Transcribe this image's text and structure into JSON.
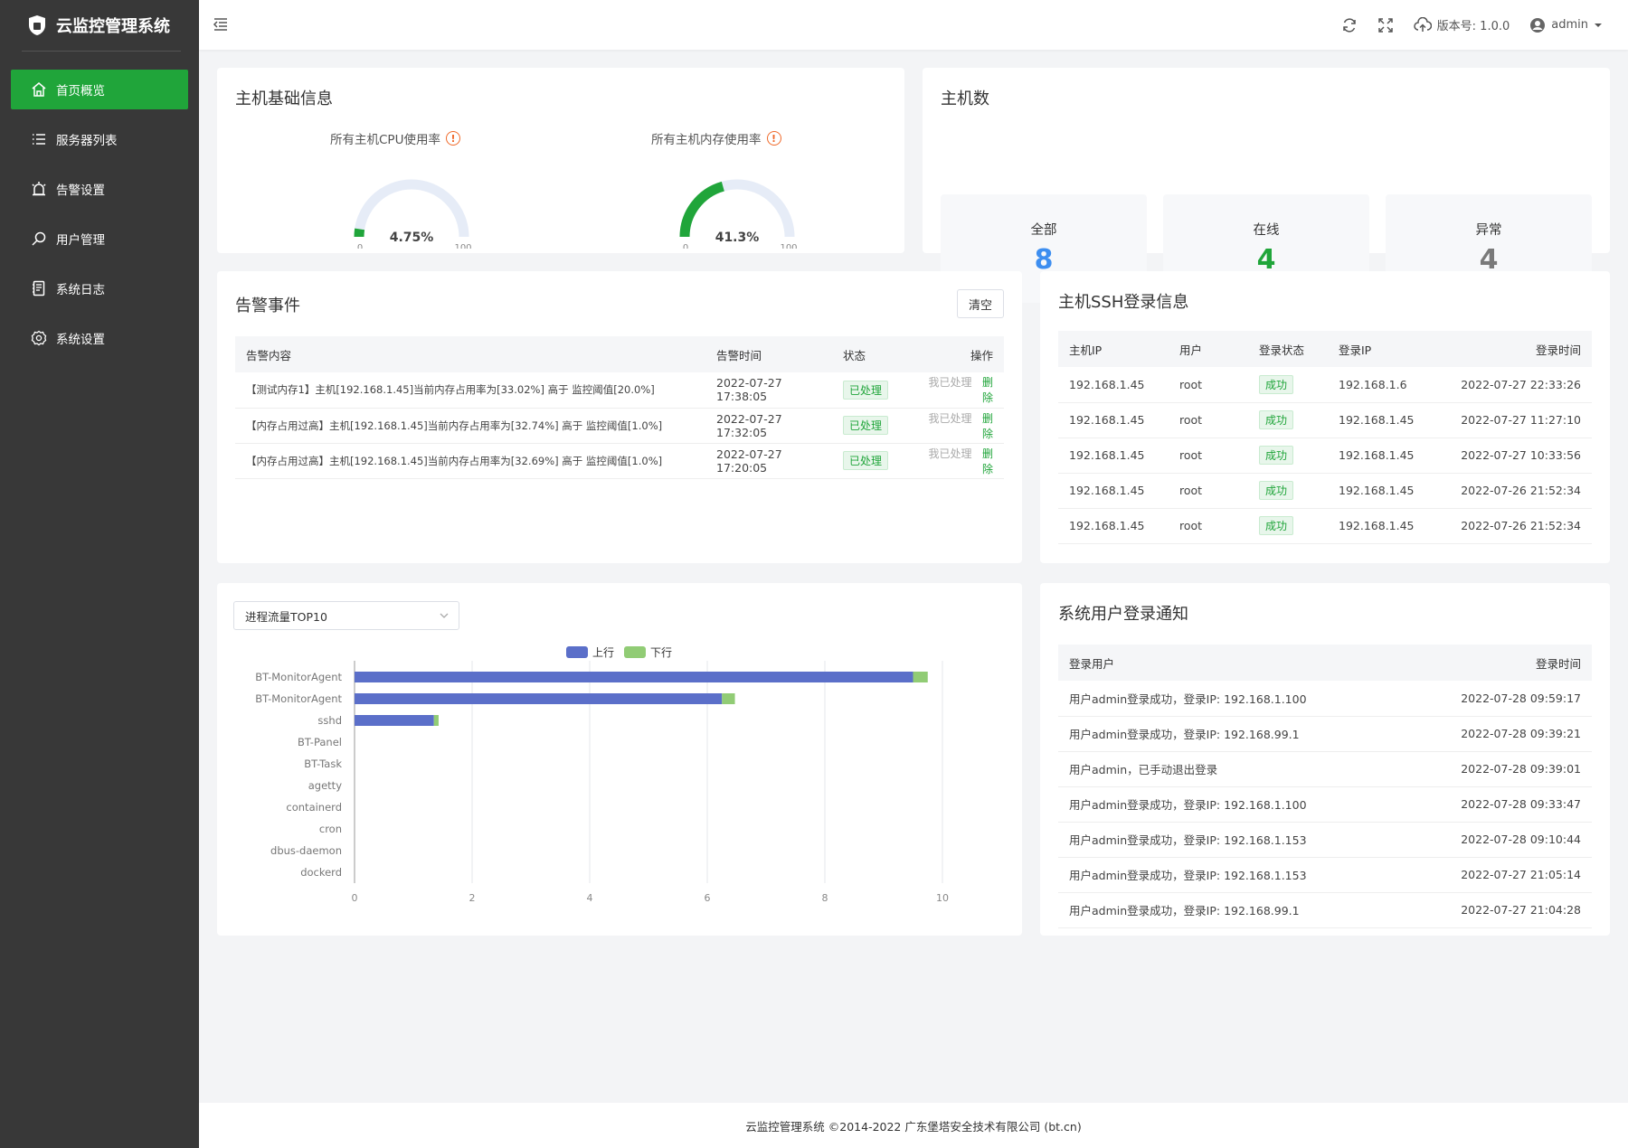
{
  "app": {
    "title": "云监控管理系统"
  },
  "sidebar": {
    "items": [
      {
        "label": "首页概览",
        "icon": "home-icon",
        "active": true
      },
      {
        "label": "服务器列表",
        "icon": "list-icon"
      },
      {
        "label": "告警设置",
        "icon": "alarm-icon"
      },
      {
        "label": "用户管理",
        "icon": "search-icon"
      },
      {
        "label": "系统日志",
        "icon": "log-icon"
      },
      {
        "label": "系统设置",
        "icon": "gear-icon"
      }
    ]
  },
  "topbar": {
    "version": "版本号: 1.0.0",
    "user": "admin"
  },
  "host_info": {
    "title": "主机基础信息",
    "cpu": {
      "label": "所有主机CPU使用率",
      "value_text": "4.75%",
      "value": 4.75,
      "min": "0",
      "max": "100"
    },
    "mem": {
      "label": "所有主机内存使用率",
      "value_text": "41.3%",
      "value": 41.3,
      "min": "0",
      "max": "100"
    }
  },
  "host_count": {
    "title": "主机数",
    "all": {
      "label": "全部",
      "value": "8"
    },
    "online": {
      "label": "在线",
      "value": "4"
    },
    "abnormal": {
      "label": "异常",
      "value": "4"
    }
  },
  "alarm": {
    "title": "告警事件",
    "clear_label": "清空",
    "headers": [
      "告警内容",
      "告警时间",
      "状态",
      "操作"
    ],
    "rows": [
      {
        "content": "【测试内存1】主机[192.168.1.45]当前内存占用率为[33.02%] 高于 监控阈值[20.0%]",
        "time": "2022-07-27 17:38:05",
        "status": "已处理",
        "handled": "我已处理",
        "delete": "删除"
      },
      {
        "content": "【内存占用过高】主机[192.168.1.45]当前内存占用率为[32.74%] 高于 监控阈值[1.0%]",
        "time": "2022-07-27 17:32:05",
        "status": "已处理",
        "handled": "我已处理",
        "delete": "删除"
      },
      {
        "content": "【内存占用过高】主机[192.168.1.45]当前内存占用率为[32.69%] 高于 监控阈值[1.0%]",
        "time": "2022-07-27 17:20:05",
        "status": "已处理",
        "handled": "我已处理",
        "delete": "删除"
      }
    ]
  },
  "ssh": {
    "title": "主机SSH登录信息",
    "headers": [
      "主机IP",
      "用户",
      "登录状态",
      "登录IP",
      "登录时间"
    ],
    "rows": [
      {
        "host": "192.168.1.45",
        "user": "root",
        "status": "成功",
        "ip": "192.168.1.6",
        "time": "2022-07-27 22:33:26"
      },
      {
        "host": "192.168.1.45",
        "user": "root",
        "status": "成功",
        "ip": "192.168.1.45",
        "time": "2022-07-27 11:27:10"
      },
      {
        "host": "192.168.1.45",
        "user": "root",
        "status": "成功",
        "ip": "192.168.1.45",
        "time": "2022-07-27 10:33:56"
      },
      {
        "host": "192.168.1.45",
        "user": "root",
        "status": "成功",
        "ip": "192.168.1.45",
        "time": "2022-07-26 21:52:34"
      },
      {
        "host": "192.168.1.45",
        "user": "root",
        "status": "成功",
        "ip": "192.168.1.45",
        "time": "2022-07-26 21:52:34"
      }
    ]
  },
  "process": {
    "select_value": "进程流量TOP10"
  },
  "chart_data": {
    "type": "bar",
    "orientation": "horizontal",
    "stacked": true,
    "categories": [
      "BT-MonitorAgent",
      "BT-MonitorAgent",
      "sshd",
      "BT-Panel",
      "BT-Task",
      "agetty",
      "containerd",
      "cron",
      "dbus-daemon",
      "dockerd"
    ],
    "series": [
      {
        "name": "上行",
        "color": "#5b6fc9",
        "values": [
          9.5,
          6.25,
          1.35,
          0,
          0,
          0,
          0,
          0,
          0,
          0
        ]
      },
      {
        "name": "下行",
        "color": "#91cc75",
        "values": [
          0.25,
          0.22,
          0.08,
          0,
          0,
          0,
          0,
          0,
          0,
          0
        ]
      }
    ],
    "xlim": [
      0,
      10
    ],
    "xticks": [
      "0",
      "2",
      "4",
      "6",
      "8",
      "10"
    ],
    "legend": "top-center",
    "grid": true
  },
  "notify": {
    "title": "系统用户登录通知",
    "headers": [
      "登录用户",
      "登录时间"
    ],
    "rows": [
      {
        "text": "用户admin登录成功，登录IP: 192.168.1.100",
        "time": "2022-07-28 09:59:17"
      },
      {
        "text": "用户admin登录成功，登录IP: 192.168.99.1",
        "time": "2022-07-28 09:39:21"
      },
      {
        "text": "用户admin，已手动退出登录",
        "time": "2022-07-28 09:39:01"
      },
      {
        "text": "用户admin登录成功，登录IP: 192.168.1.100",
        "time": "2022-07-28 09:33:47"
      },
      {
        "text": "用户admin登录成功，登录IP: 192.168.1.153",
        "time": "2022-07-28 09:10:44"
      },
      {
        "text": "用户admin登录成功，登录IP: 192.168.1.153",
        "time": "2022-07-27 21:05:14"
      },
      {
        "text": "用户admin登录成功，登录IP: 192.168.99.1",
        "time": "2022-07-27 21:04:28"
      }
    ]
  },
  "footer": {
    "text": "云监控管理系统 ©2014-2022 广东堡塔安全技术有限公司 (bt.cn)"
  },
  "colors": {
    "brand": "#20a53a",
    "blue": "#3d8ef0",
    "gray": "#7a7a7a"
  }
}
